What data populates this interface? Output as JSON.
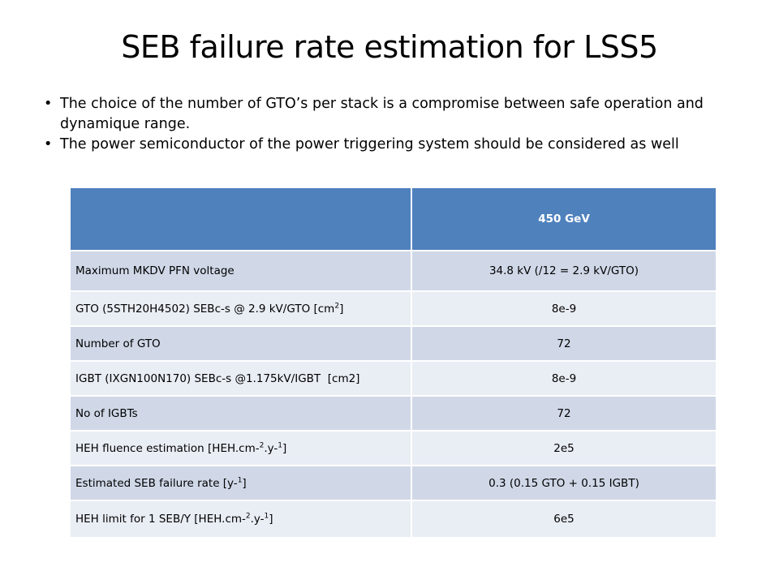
{
  "title": "SEB failure rate estimation for LSS5",
  "bullets": [
    "The choice of the number of GTO’s per stack is a compromise between safe operation and dynamique range.",
    "The power semiconductor of the power triggering system should be considered as well"
  ],
  "table": {
    "header": [
      "",
      "450 GeV"
    ],
    "rows": [
      {
        "label": "Maximum MKDV PFN voltage",
        "value": "34.8 kV (/12 = 2.9 kV/GTO)"
      },
      {
        "label_pre": "GTO (5STH20H4502) SEBc-s @ 2.9 kV/GTO [cm",
        "label_sup": "2",
        "label_post": "]",
        "value": "8e-9"
      },
      {
        "label": "Number of GTO",
        "value": "72"
      },
      {
        "label": "IGBT (IXGN100N170) SEBc-s @1.175kV/IGBT  [cm2]",
        "value": "8e-9"
      },
      {
        "label": "No of IGBTs",
        "value": "72"
      },
      {
        "label_pre": "HEH fluence estimation [HEH.cm-",
        "label_sup": "2",
        "label_mid": ".y-",
        "label_sup2": "1",
        "label_post": "]",
        "value": "2e5"
      },
      {
        "label_pre": "Estimated SEB failure rate [y-",
        "label_sup": "1",
        "label_post": "]",
        "value": "0.3 (0.15 GTO + 0.15 IGBT)"
      },
      {
        "label_pre": "HEH limit for 1 SEB/Y [HEH.cm-",
        "label_sup": "2",
        "label_mid": ".y-",
        "label_sup2": "1",
        "label_post": "]",
        "value": "6e5"
      }
    ]
  }
}
